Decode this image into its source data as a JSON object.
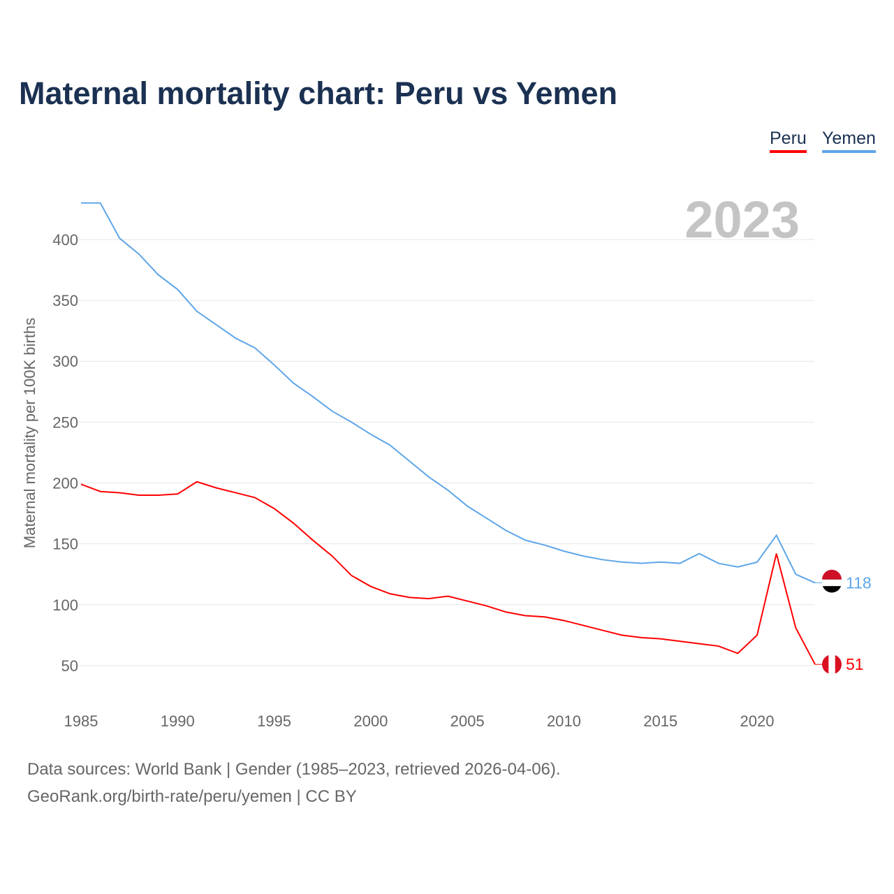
{
  "title": "Maternal mortality chart: Peru vs Yemen",
  "legend": {
    "peru": "Peru",
    "yemen": "Yemen"
  },
  "footer": {
    "line1": "Data sources: World Bank | Gender (1985–2023, retrieved 2026-04-06).",
    "line2": "GeoRank.org/birth-rate/peru/yemen | CC BY"
  },
  "chart_data": {
    "type": "line",
    "title": "Maternal mortality chart: Peru vs Yemen",
    "ylabel": "Maternal mortality per 100K births",
    "xlabel": "",
    "year_label": "2023",
    "xlim": [
      1985,
      2023
    ],
    "ylim": [
      0,
      430
    ],
    "xticks": [
      1985,
      1990,
      1995,
      2000,
      2005,
      2010,
      2015,
      2020
    ],
    "yticks": [
      50,
      100,
      150,
      200,
      250,
      300,
      350,
      400
    ],
    "x": [
      1985,
      1986,
      1987,
      1988,
      1989,
      1990,
      1991,
      1992,
      1993,
      1994,
      1995,
      1996,
      1997,
      1998,
      1999,
      2000,
      2001,
      2002,
      2003,
      2004,
      2005,
      2006,
      2007,
      2008,
      2009,
      2010,
      2011,
      2012,
      2013,
      2014,
      2015,
      2016,
      2017,
      2018,
      2019,
      2020,
      2021,
      2022,
      2023
    ],
    "series": [
      {
        "name": "Peru",
        "color": "#ff0000",
        "end_label": "51",
        "values": [
          199,
          193,
          192,
          190,
          190,
          191,
          201,
          196,
          192,
          188,
          179,
          167,
          153,
          140,
          124,
          115,
          109,
          106,
          105,
          107,
          103,
          99,
          94,
          91,
          90,
          87,
          83,
          79,
          75,
          73,
          72,
          70,
          68,
          66,
          60,
          75,
          142,
          81,
          51
        ]
      },
      {
        "name": "Yemen",
        "color": "#5ea6e8",
        "end_label": "118",
        "values": [
          430,
          430,
          401,
          388,
          371,
          359,
          341,
          330,
          319,
          311,
          297,
          282,
          271,
          259,
          250,
          240,
          231,
          218,
          205,
          194,
          181,
          171,
          161,
          153,
          149,
          144,
          140,
          137,
          135,
          134,
          135,
          134,
          142,
          134,
          131,
          135,
          157,
          125,
          118
        ]
      }
    ]
  }
}
